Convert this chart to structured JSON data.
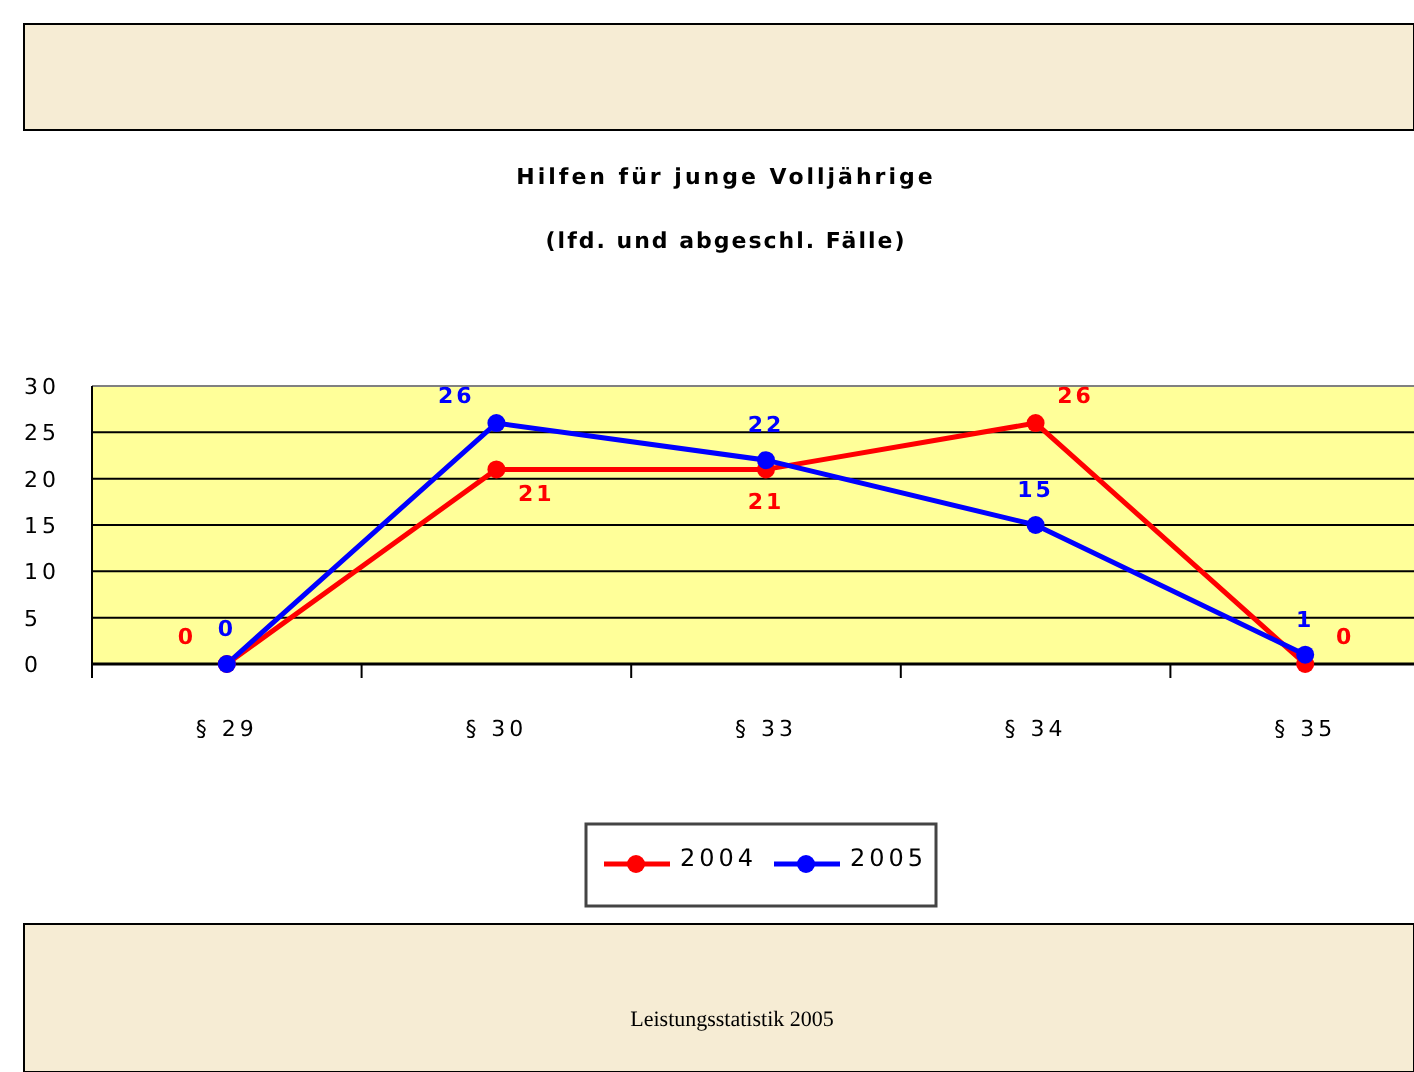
{
  "chart_data": {
    "type": "line",
    "title": "Hilfen für junge Volljährige",
    "subtitle": "(lfd. und abgeschl. Fälle)",
    "categories": [
      "§ 29",
      "§ 30",
      "§ 33",
      "§ 34",
      "§ 35"
    ],
    "series": [
      {
        "name": "2004",
        "color": "#ff0000",
        "values": [
          0,
          21,
          21,
          26,
          0
        ]
      },
      {
        "name": "2005",
        "color": "#0000ff",
        "values": [
          0,
          26,
          22,
          15,
          1
        ]
      }
    ],
    "ylim": [
      0,
      30
    ],
    "yticks": [
      0,
      5,
      10,
      15,
      20,
      25,
      30
    ],
    "grid": "y",
    "legend": "bottom",
    "marker": "circle",
    "line_style": "solid",
    "data_labels": true,
    "annotations": [
      "Leistungsstatistik 2005"
    ]
  }
}
